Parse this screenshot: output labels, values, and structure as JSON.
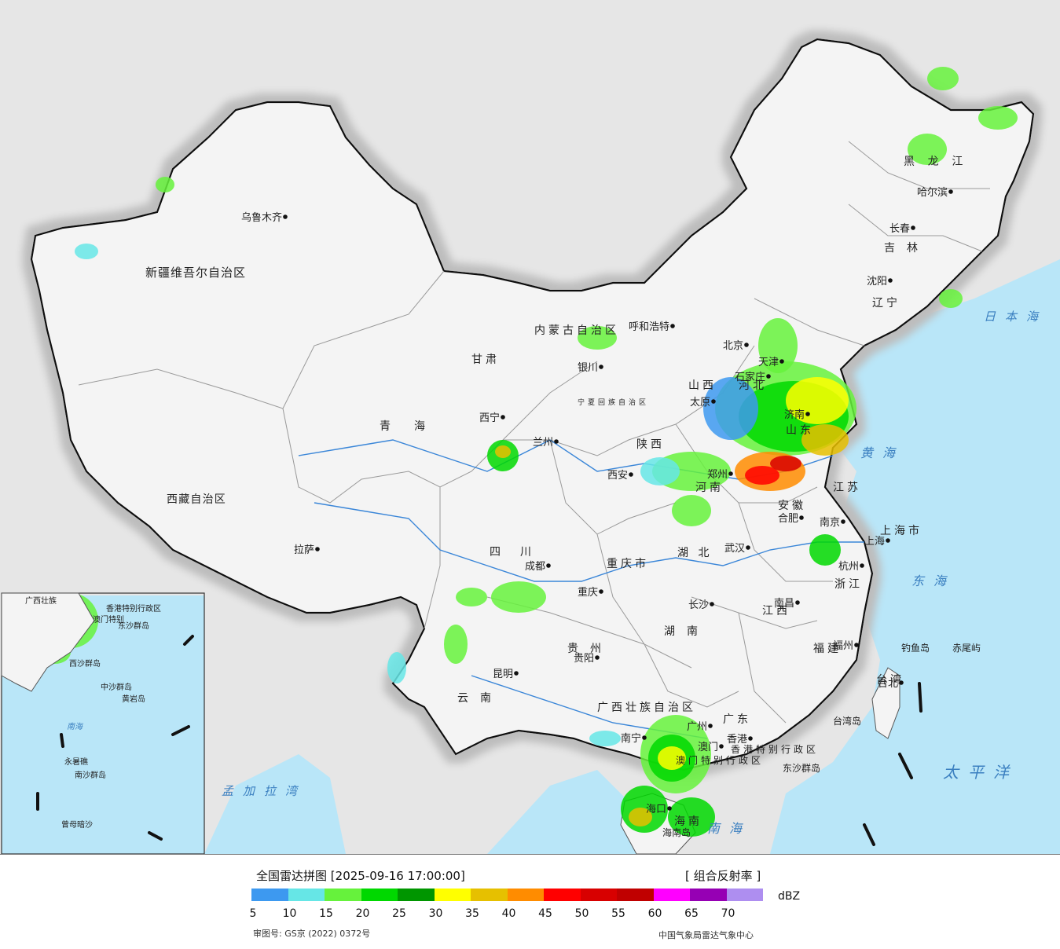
{
  "title": "全国雷达拼图",
  "timestamp": "[2025-09-16 17:00:00]",
  "product": "[ 组合反射率 ]",
  "legend": {
    "unit": "dBZ",
    "colors": [
      "#3d99f0",
      "#66e6e6",
      "#66f23c",
      "#00d800",
      "#009600",
      "#ffff00",
      "#e6c000",
      "#ff8c00",
      "#ff0000",
      "#d80000",
      "#c00000",
      "#ff00ff",
      "#9600b4",
      "#ae8ef0"
    ],
    "ticks": [
      "5",
      "10",
      "15",
      "20",
      "25",
      "30",
      "35",
      "40",
      "45",
      "50",
      "55",
      "60",
      "65",
      "70"
    ]
  },
  "footer": {
    "approval": "审图号: GS京 (2022) 0372号",
    "organization": "中国气象局雷达气象中心"
  },
  "map": {
    "colors": {
      "land": "#f4f4f4",
      "sea": "#b9e6f8",
      "foreign": "#e6e6e6",
      "border": "#111111",
      "province": "#9a9a9a",
      "river": "#3a86d8"
    },
    "regions": [
      "新疆维吾尔自治区",
      "西藏自治区",
      "青海",
      "甘肃",
      "内蒙古自治区",
      "宁夏回族自治区",
      "陕西",
      "山西",
      "河北",
      "山东",
      "河南",
      "四川",
      "重庆市",
      "湖北",
      "安徽",
      "江苏",
      "上海市",
      "浙江",
      "湖南",
      "江西",
      "福建",
      "贵州",
      "云南",
      "广西壮族自治区",
      "广东",
      "海南",
      "台湾",
      "黑龙江",
      "吉林",
      "辽宁",
      "香港特别行政区",
      "澳门特别行政区"
    ],
    "cities": [
      "乌鲁木齐",
      "拉萨",
      "西宁",
      "兰州",
      "银川",
      "呼和浩特",
      "北京",
      "天津",
      "石家庄",
      "太原",
      "济南",
      "郑州",
      "西安",
      "成都",
      "重庆",
      "武汉",
      "合肥",
      "南京",
      "上海",
      "杭州",
      "长沙",
      "南昌",
      "福州",
      "台北",
      "贵阳",
      "昆明",
      "南宁",
      "广州",
      "香港",
      "澳门",
      "海口",
      "沈阳",
      "长春",
      "哈尔滨"
    ],
    "seas": [
      "日本海",
      "黄海",
      "东海",
      "太平洋",
      "南海",
      "孟加拉湾"
    ],
    "islands": [
      "钓鱼岛",
      "赤尾屿",
      "台湾岛",
      "东沙群岛",
      "海南岛"
    ],
    "inset_labels": [
      "广西壮族",
      "香港特别行政区",
      "澳门特别",
      "西沙群岛",
      "中沙群岛",
      "黄岩岛",
      "南海",
      "永暑礁",
      "南沙群岛",
      "曾母暗沙",
      "东沙群岛"
    ]
  }
}
